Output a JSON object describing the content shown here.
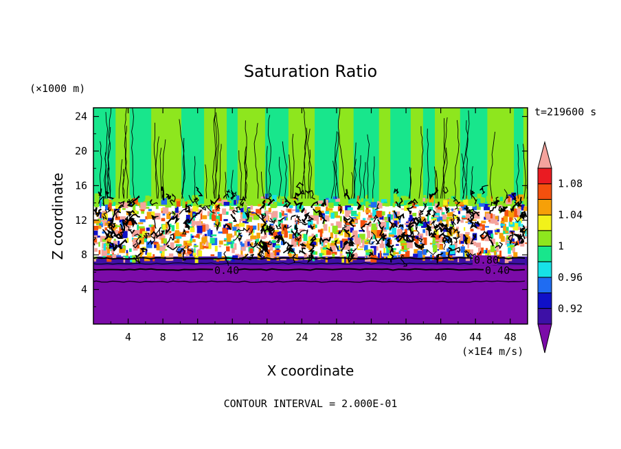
{
  "chart_data": {
    "type": "heatmap",
    "title": "Saturation Ratio",
    "xlabel": "X coordinate",
    "ylabel": "Z coordinate",
    "x_unit": "(×1E4 m/s)",
    "y_unit": "(×1000 m)",
    "time_label": "t=219600 s",
    "footer": "CONTOUR INTERVAL = 2.000E-01",
    "xlim": [
      0,
      50
    ],
    "ylim": [
      0,
      25
    ],
    "x_ticks": [
      "4",
      "8",
      "12",
      "16",
      "20",
      "24",
      "28",
      "32",
      "36",
      "40",
      "44",
      "48"
    ],
    "x_tick_values": [
      4,
      8,
      12,
      16,
      20,
      24,
      28,
      32,
      36,
      40,
      44,
      48
    ],
    "y_ticks": [
      "4",
      "8",
      "12",
      "16",
      "20",
      "24"
    ],
    "y_tick_values": [
      4,
      8,
      12,
      16,
      20,
      24
    ],
    "colorbar": {
      "labels": [
        "1.08",
        "1.04",
        "1",
        "0.96",
        "0.92"
      ],
      "label_values": [
        1.08,
        1.04,
        1.0,
        0.96,
        0.92
      ],
      "levels": [
        0.9,
        0.92,
        0.94,
        0.96,
        0.98,
        1.0,
        1.02,
        1.04,
        1.06,
        1.08,
        1.1
      ],
      "colors": [
        "#7b0ba8",
        "#3d10a6",
        "#1010c8",
        "#1f6cf2",
        "#17e2e6",
        "#18e68c",
        "#8ee61e",
        "#f2f21a",
        "#f6a008",
        "#f4500e",
        "#ea1b22",
        "#f4a39d"
      ],
      "extend": "both"
    },
    "contour_labels": [
      "0.40",
      "0.40",
      "0.80"
    ],
    "contour_label_values": [
      0.4,
      0.4,
      0.8
    ],
    "regions": [
      {
        "name": "lower-dry-layer",
        "z_range": [
          0,
          7.8
        ],
        "value_approx": "<0.90",
        "color": "#7b0ba8"
      },
      {
        "name": "turbulent-cloud-layer",
        "z_range": [
          7.8,
          14.5
        ],
        "value_approx": "0.90-1.10+"
      },
      {
        "name": "upper-layer",
        "z_range": [
          14.5,
          25
        ],
        "value_approx": "1.00-1.02",
        "colors": [
          "#18e68c",
          "#8ee61e"
        ]
      }
    ],
    "grid": false,
    "legend": "right colorbar"
  }
}
